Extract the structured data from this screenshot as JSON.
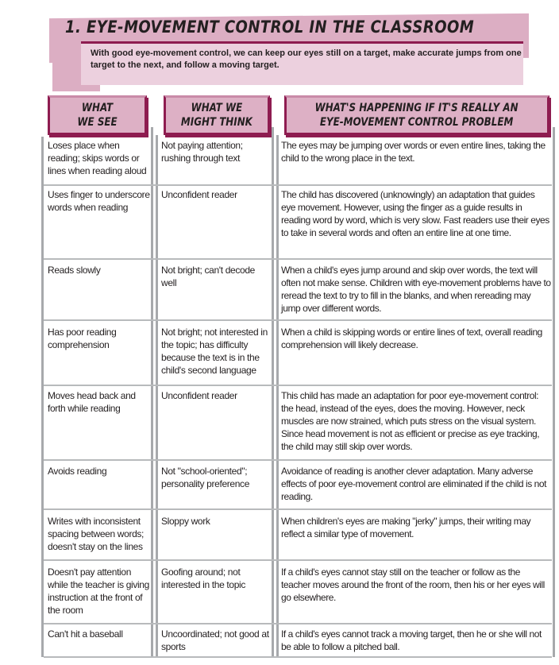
{
  "header": {
    "title": "1.  EYE-MOVEMENT CONTROL IN THE CLASSROOM",
    "intro": "With good eye-movement control, we can keep our eyes still on a target, make accurate jumps from one target to the next, and follow a moving target."
  },
  "columns": [
    {
      "line1": "WHAT",
      "line2": "WE SEE"
    },
    {
      "line1": "WHAT WE",
      "line2": "MIGHT THINK"
    },
    {
      "line1": "WHAT'S HAPPENING IF IT'S REALLY AN",
      "line2": "EYE-MOVEMENT CONTROL PROBLEM"
    }
  ],
  "colors": {
    "band": "#dcaec3",
    "intro_bg": "#ecd0de",
    "accent": "#8e1c50",
    "grid": "#a7a9ac"
  },
  "rows": [
    {
      "see": "Loses place when reading; skips words or lines when reading aloud",
      "think": "Not paying attention; rushing through text",
      "happening": "The eyes may be jumping over words or even entire lines, taking the child to the wrong place in the text."
    },
    {
      "see": "Uses finger to underscore words when reading",
      "think": "Unconfident reader",
      "happening": "The child has discovered (unknowingly) an adaptation that guides eye movement. However, using the finger as a guide results in reading word by word, which is very slow. Fast readers use their eyes to take in several words and often an entire line at one time."
    },
    {
      "see": "Reads slowly",
      "think": "Not bright; can't decode well",
      "happening": "When a child's eyes jump around and skip over words, the text will often not make sense. Children with eye-movement problems have to reread the text to try to fill in the blanks, and when rereading may jump over different words."
    },
    {
      "see": "Has poor reading comprehension",
      "think": "Not bright; not interested in the topic; has difficulty because the text is in the child's second language",
      "happening": "When a child is skipping words or entire lines of text, overall reading comprehension will likely decrease."
    },
    {
      "see": "Moves head back and forth while reading",
      "think": "Unconfident reader",
      "happening": "This child has made an adaptation for poor eye-movement control: the head, instead of the eyes, does the moving. However, neck muscles are now strained, which puts stress on the visual system. Since head movement is not as efficient or precise as eye tracking, the child may still skip over words."
    },
    {
      "see": "Avoids reading",
      "think": "Not \"school-oriented\"; personality preference",
      "happening": "Avoidance of reading is another clever adaptation. Many adverse effects of poor eye-movement control are eliminated if the child is not reading."
    },
    {
      "see": "Writes with inconsistent spacing between words; doesn't stay on the lines",
      "think": "Sloppy work",
      "happening": "When children's eyes are making \"jerky\" jumps, their writing may reflect a similar type of movement."
    },
    {
      "see": "Doesn't pay attention while the teacher is giving instruction at the front of the room",
      "think": "Goofing around; not interested in the topic",
      "happening": "If a child's eyes cannot stay still on the teacher or follow as the teacher moves around the front of the room, then his or her eyes will go elsewhere."
    },
    {
      "see": "Can't hit a baseball",
      "think": "Uncoordinated; not good at sports",
      "happening": "If a child's eyes cannot track a moving target, then he or she will not be able to follow a pitched ball."
    }
  ]
}
